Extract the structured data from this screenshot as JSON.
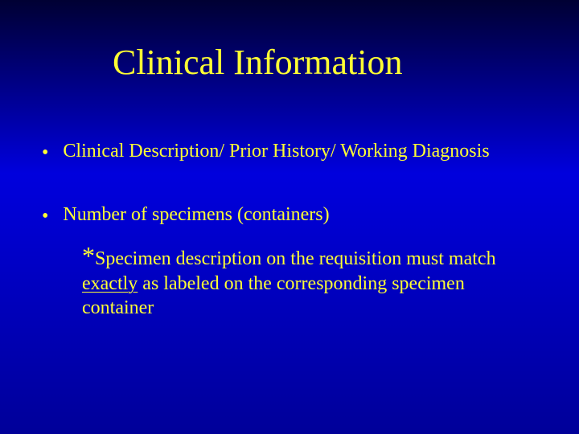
{
  "slide": {
    "title": "Clinical Information",
    "bullets": [
      "Clinical Description/ Prior History/ Working Diagnosis",
      "Number of specimens (containers)"
    ],
    "note": {
      "asterisk": "*",
      "part1": "Specimen description on the requisition must match ",
      "emphasis": "exactly",
      "part2": "  as labeled on the corresponding specimen container"
    },
    "colors": {
      "text": "#ffff33",
      "bg_top": "#000033",
      "bg_mid": "#0000dd",
      "bg_bottom": "#000099"
    },
    "fonts": {
      "title_size_pt": 44,
      "body_size_pt": 24,
      "family": "Times New Roman"
    }
  }
}
